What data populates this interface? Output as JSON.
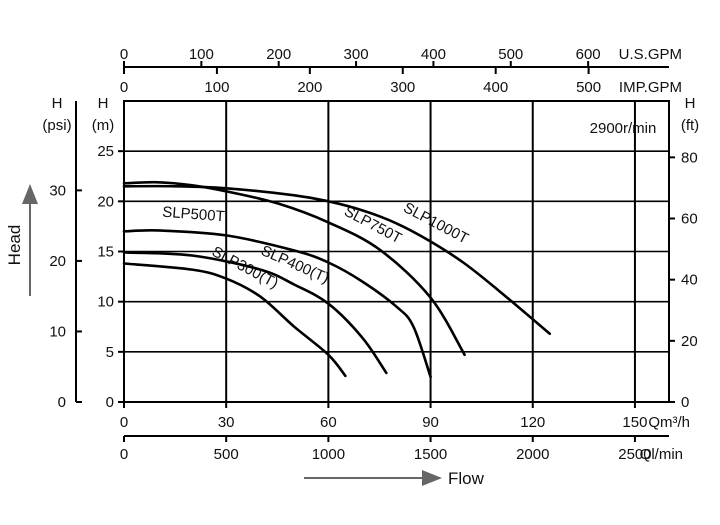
{
  "chart_data": {
    "type": "line",
    "speed_label": "2900r/min",
    "axes": {
      "flow_m3h": {
        "unit": "Qm³/h",
        "range": [
          0,
          160
        ],
        "ticks": [
          0,
          30,
          60,
          90,
          120,
          150
        ],
        "labels": [
          "0",
          "30",
          "60",
          "90",
          "120",
          "150"
        ]
      },
      "flow_lmin": {
        "unit": "Ql/min",
        "ticks": [
          0,
          500,
          1000,
          1500,
          2000,
          2500
        ],
        "labels": [
          "0",
          "500",
          "1000",
          "1500",
          "2000",
          "2500"
        ]
      },
      "flow_usgpm": {
        "unit": "U.S.GPM",
        "ticks": [
          0,
          100,
          200,
          300,
          400,
          500,
          600
        ],
        "labels": [
          "0",
          "100",
          "200",
          "300",
          "400",
          "500",
          "600"
        ]
      },
      "flow_impgpm": {
        "unit": "IMP.GPM",
        "ticks": [
          0,
          100,
          200,
          300,
          400,
          500
        ],
        "labels": [
          "0",
          "100",
          "200",
          "300",
          "400",
          "500"
        ]
      },
      "head_m": {
        "unit_top": "H",
        "unit_bottom": "(m)",
        "range": [
          0,
          30
        ],
        "ticks": [
          0,
          5,
          10,
          15,
          20,
          25
        ],
        "labels": [
          "0",
          "5",
          "10",
          "15",
          "20",
          "25"
        ]
      },
      "head_psi": {
        "unit_top": "H",
        "unit_bottom": "(psi)",
        "ticks": [
          0,
          10,
          20,
          30
        ],
        "labels": [
          "0",
          "10",
          "20",
          "30"
        ]
      },
      "head_ft": {
        "unit_top": "H",
        "unit_bottom": "(ft)",
        "ticks": [
          0,
          20,
          40,
          60,
          80
        ],
        "labels": [
          "0",
          "20",
          "40",
          "60",
          "80"
        ]
      }
    },
    "xlabel": "Flow",
    "ylabel": "Head",
    "grid": true,
    "series": [
      {
        "name": "SLP300(T)",
        "x": [
          0,
          20,
          30,
          40,
          50,
          60,
          65
        ],
        "y": [
          13.8,
          13.2,
          12.3,
          10.5,
          7.5,
          4.7,
          2.6
        ]
      },
      {
        "name": "SLP400(T)",
        "x": [
          0,
          20,
          40,
          50,
          60,
          70,
          77
        ],
        "y": [
          14.9,
          14.6,
          13.2,
          11.7,
          9.8,
          6.4,
          2.9
        ]
      },
      {
        "name": "SLP500T",
        "x": [
          0,
          10,
          30,
          50,
          60,
          70,
          80,
          85,
          90
        ],
        "y": [
          17.0,
          17.1,
          16.6,
          15.1,
          13.9,
          12.0,
          9.5,
          7.5,
          2.5
        ]
      },
      {
        "name": "SLP750T",
        "x": [
          0,
          10,
          20,
          30,
          45,
          60,
          75,
          90,
          100
        ],
        "y": [
          21.8,
          21.9,
          21.6,
          21.0,
          19.8,
          17.9,
          15.2,
          10.4,
          4.7
        ]
      },
      {
        "name": "SLP1000T",
        "x": [
          0,
          15,
          30,
          50,
          60,
          70,
          80,
          90,
          100,
          110,
          125
        ],
        "y": [
          21.5,
          21.5,
          21.3,
          20.6,
          20.0,
          19.1,
          17.8,
          16.0,
          13.8,
          11.1,
          6.8
        ]
      }
    ]
  }
}
